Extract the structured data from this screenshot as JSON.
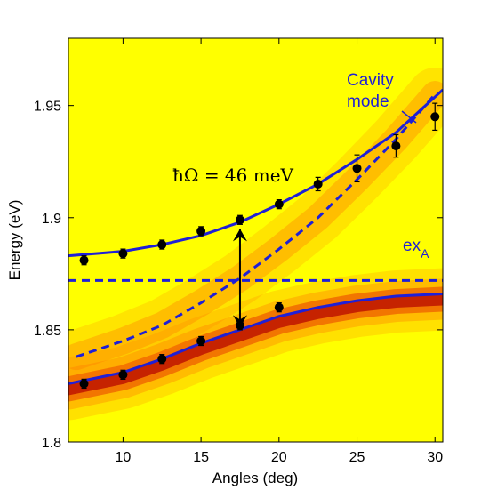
{
  "chart_data": {
    "type": "scatter",
    "xlabel": "Angles (deg)",
    "ylabel": "Energy (eV)",
    "xlim": [
      6.5,
      30.5
    ],
    "ylim": [
      1.8,
      1.98
    ],
    "x_ticks": [
      10,
      15,
      20,
      25,
      30
    ],
    "x_tick_labels": [
      "10",
      "15",
      "20",
      "25",
      "30"
    ],
    "y_ticks": [
      1.8,
      1.85,
      1.9,
      1.95
    ],
    "y_tick_labels": [
      "1.8",
      "1.85",
      "1.9",
      "1.95"
    ],
    "background": "heatmap",
    "colors": {
      "fit": "#1f1fd6",
      "points": "#000000",
      "heat_low": "#ffff00",
      "heat_mid": "#ff7800",
      "heat_high": "#b40000"
    },
    "series": [
      {
        "style": "points-with-errorbars",
        "points": [
          {
            "x": 7.5,
            "y": 1.881,
            "err": 0.002
          },
          {
            "x": 10.0,
            "y": 1.884,
            "err": 0.002
          },
          {
            "x": 12.5,
            "y": 1.888,
            "err": 0.002
          },
          {
            "x": 15.0,
            "y": 1.894,
            "err": 0.002
          },
          {
            "x": 17.5,
            "y": 1.899,
            "err": 0.002
          },
          {
            "x": 20.0,
            "y": 1.906,
            "err": 0.002
          },
          {
            "x": 22.5,
            "y": 1.915,
            "err": 0.003
          },
          {
            "x": 25.0,
            "y": 1.922,
            "err": 0.006
          },
          {
            "x": 27.5,
            "y": 1.932,
            "err": 0.005
          },
          {
            "x": 30.0,
            "y": 1.945,
            "err": 0.006
          },
          {
            "x": 7.5,
            "y": 1.826,
            "err": 0.002
          },
          {
            "x": 10.0,
            "y": 1.83,
            "err": 0.002
          },
          {
            "x": 12.5,
            "y": 1.837,
            "err": 0.002
          },
          {
            "x": 15.0,
            "y": 1.845,
            "err": 0.002
          },
          {
            "x": 17.5,
            "y": 1.852,
            "err": 0.002
          },
          {
            "x": 20.0,
            "y": 1.86,
            "err": 0.002
          }
        ]
      },
      {
        "style": "solid-line",
        "x": [
          6.5,
          10,
          12.5,
          15,
          17.5,
          20,
          22.5,
          25,
          27.5,
          30.5
        ],
        "y": [
          1.883,
          1.885,
          1.888,
          1.892,
          1.898,
          1.906,
          1.915,
          1.926,
          1.938,
          1.957
        ]
      },
      {
        "style": "solid-line",
        "x": [
          6.5,
          10,
          12.5,
          15,
          17.5,
          20,
          22.5,
          25,
          27.5,
          30.5
        ],
        "y": [
          1.826,
          1.831,
          1.837,
          1.844,
          1.85,
          1.856,
          1.86,
          1.863,
          1.865,
          1.866
        ]
      },
      {
        "style": "dashed-line",
        "x": [
          7,
          10,
          12.5,
          15,
          17.5,
          20,
          22.5,
          25,
          27.5,
          30
        ],
        "y": [
          1.838,
          1.845,
          1.852,
          1.862,
          1.873,
          1.886,
          1.9,
          1.917,
          1.935,
          1.955
        ]
      },
      {
        "style": "dashed-line",
        "x": [
          6.5,
          30.5
        ],
        "y": [
          1.872,
          1.872
        ]
      }
    ],
    "splitting_arrow": {
      "x": 17.5,
      "y_top": 1.895,
      "y_bottom": 1.851
    },
    "annotations": {
      "rabi": "ħΩ = 46  meV",
      "cavity_line1": "Cavity",
      "cavity_line2": "mode",
      "exciton_main": "ex",
      "exciton_sub": "A"
    }
  }
}
